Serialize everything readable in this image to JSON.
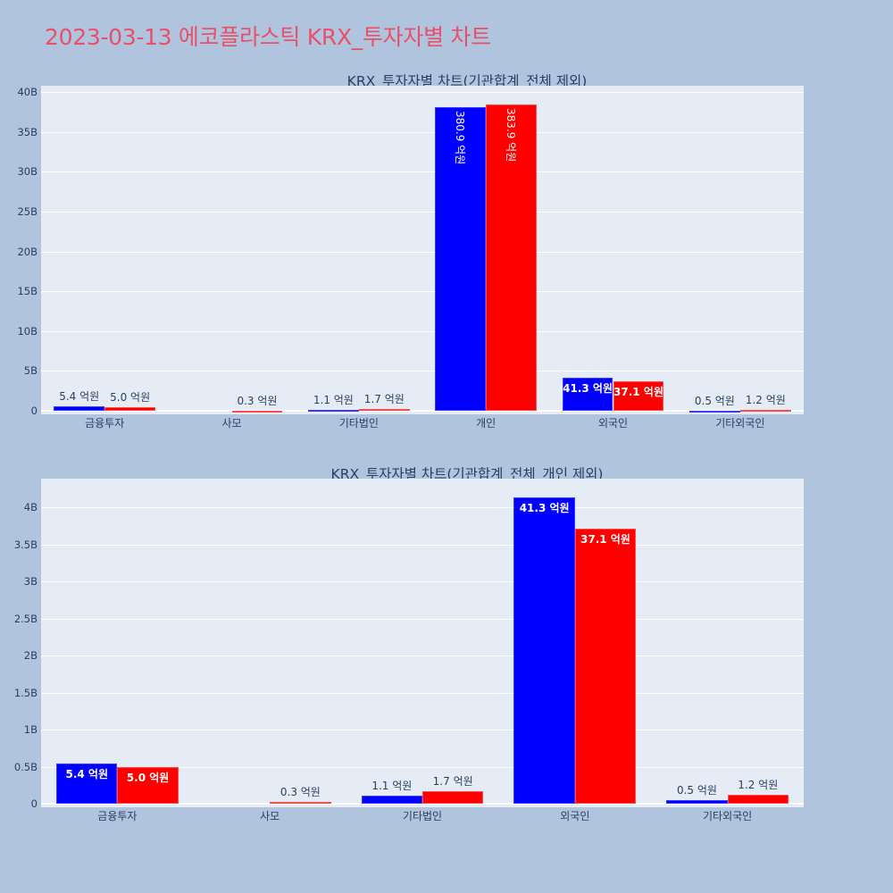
{
  "title": "2023-03-13 에코플라스틱 KRX_투자자별 차트",
  "colors": {
    "series1": "#0000ff",
    "series2": "#ff0000",
    "background": "#b0c4de",
    "plot_bg": "#e5ecf6",
    "title": "#e8506a"
  },
  "chart_data": [
    {
      "type": "bar",
      "title": "KRX_투자자별 차트(기관합계_전체 제외)",
      "xlabel": "",
      "ylabel": "",
      "categories": [
        "금융투자",
        "사모",
        "기타법인",
        "개인",
        "외국인",
        "기타외국인"
      ],
      "y_ticks": [
        "0",
        "5B",
        "10B",
        "15B",
        "20B",
        "25B",
        "30B",
        "35B",
        "40B"
      ],
      "ylim": [
        0,
        40800000000
      ],
      "grid": true,
      "legend": "none",
      "series": [
        {
          "name": "series-blue",
          "color": "#0000ff",
          "values": [
            540000000,
            0,
            110000000,
            38090000000,
            4130000000,
            50000000
          ],
          "labels": [
            "5.4 억원",
            "",
            "1.1 억원",
            "380.9 억원",
            "41.3 억원",
            "0.5 억원"
          ]
        },
        {
          "name": "series-red",
          "color": "#ff0000",
          "values": [
            500000000,
            30000000,
            170000000,
            38390000000,
            3710000000,
            120000000
          ],
          "labels": [
            "5.0 억원",
            "0.3 억원",
            "1.7 억원",
            "383.9 억원",
            "37.1 억원",
            "1.2 억원"
          ]
        }
      ]
    },
    {
      "type": "bar",
      "title": "KRX_투자자별 차트(기관합계_전체_개인 제외)",
      "xlabel": "",
      "ylabel": "",
      "categories": [
        "금융투자",
        "사모",
        "기타법인",
        "외국인",
        "기타외국인"
      ],
      "y_ticks": [
        "0",
        "0.5B",
        "1B",
        "1.5B",
        "2B",
        "2.5B",
        "3B",
        "3.5B",
        "4B"
      ],
      "ylim": [
        0,
        4380000000
      ],
      "grid": true,
      "legend": "none",
      "series": [
        {
          "name": "series-blue",
          "color": "#0000ff",
          "values": [
            540000000,
            0,
            110000000,
            4130000000,
            50000000
          ],
          "labels": [
            "5.4 억원",
            "",
            "1.1 억원",
            "41.3 억원",
            "0.5 억원"
          ]
        },
        {
          "name": "series-red",
          "color": "#ff0000",
          "values": [
            500000000,
            30000000,
            170000000,
            3710000000,
            120000000
          ],
          "labels": [
            "5.0 억원",
            "0.3 억원",
            "1.7 억원",
            "37.1 억원",
            "1.2 억원"
          ]
        }
      ]
    }
  ]
}
